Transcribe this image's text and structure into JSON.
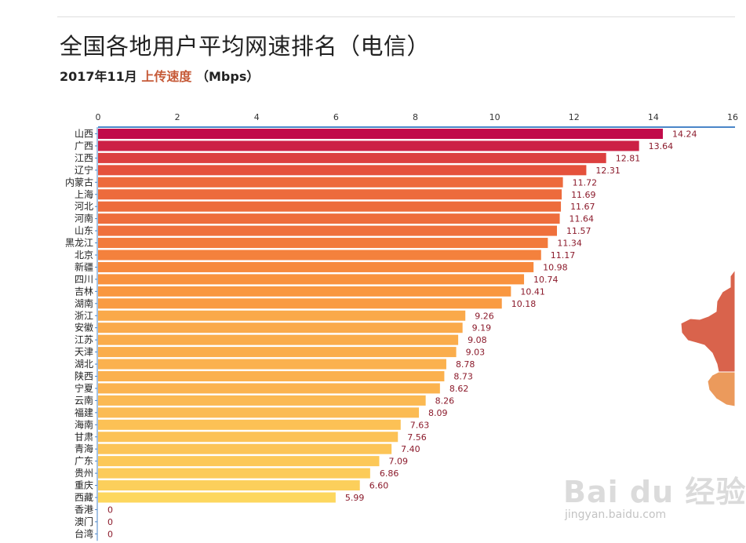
{
  "title": "全国各地用户平均网速排名（电信）",
  "subtitle": {
    "period": "2017年11月",
    "metric": "上传速度",
    "unit": "（Mbps）"
  },
  "watermark": {
    "main": "Bai du 经验",
    "sub": "jingyan.baidu.com"
  },
  "chart_data": {
    "type": "bar",
    "orientation": "horizontal",
    "xlim": [
      0,
      16
    ],
    "x_ticks": [
      0,
      2,
      4,
      6,
      8,
      10,
      12,
      14,
      16
    ],
    "axis_position": "top",
    "grid": false,
    "categories": [
      "山西",
      "广西",
      "江西",
      "辽宁",
      "内蒙古",
      "上海",
      "河北",
      "河南",
      "山东",
      "黑龙江",
      "北京",
      "新疆",
      "四川",
      "吉林",
      "湖南",
      "浙江",
      "安徽",
      "江苏",
      "天津",
      "湖北",
      "陕西",
      "宁夏",
      "云南",
      "福建",
      "海南",
      "甘肃",
      "青海",
      "广东",
      "贵州",
      "重庆",
      "西藏",
      "香港",
      "澳门",
      "台湾"
    ],
    "values": [
      14.24,
      13.64,
      12.81,
      12.31,
      11.72,
      11.69,
      11.67,
      11.64,
      11.57,
      11.34,
      11.17,
      10.98,
      10.74,
      10.41,
      10.18,
      9.26,
      9.19,
      9.08,
      9.03,
      8.78,
      8.73,
      8.62,
      8.26,
      8.09,
      7.63,
      7.56,
      7.4,
      7.09,
      6.86,
      6.6,
      5.99,
      0,
      0,
      0
    ],
    "value_labels": [
      "14.24",
      "13.64",
      "12.81",
      "12.31",
      "11.72",
      "11.69",
      "11.67",
      "11.64",
      "11.57",
      "11.34",
      "11.17",
      "10.98",
      "10.74",
      "10.41",
      "10.18",
      "9.26",
      "9.19",
      "9.08",
      "9.03",
      "8.78",
      "8.73",
      "8.62",
      "8.26",
      "8.09",
      "7.63",
      "7.56",
      "7.40",
      "7.09",
      "6.86",
      "6.60",
      "5.99",
      "0",
      "0",
      "0"
    ],
    "colors": {
      "high": "#c0094a",
      "mid_high": "#e5513b",
      "mid": "#f9913d",
      "mid_low": "#fbb852",
      "low": "#fdd85e",
      "value_label": "#8b1a2b",
      "axis": "#4a86c8",
      "map_red": "#d9634c",
      "map_orange": "#eb9a5c"
    }
  }
}
